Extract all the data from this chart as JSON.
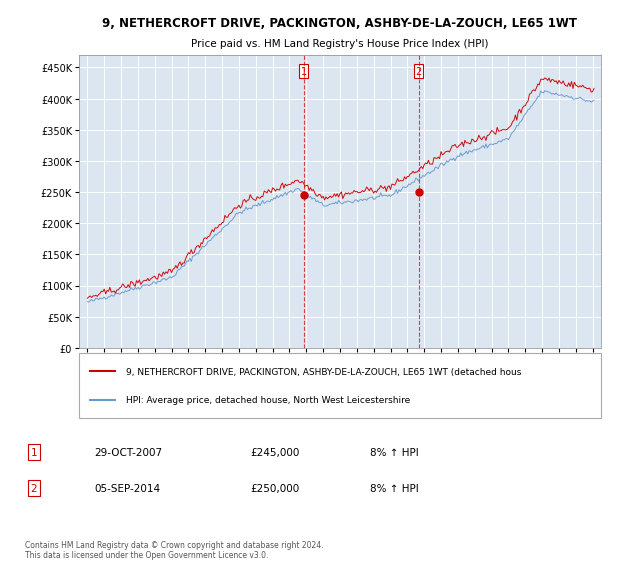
{
  "title1": "9, NETHERCROFT DRIVE, PACKINGTON, ASHBY-DE-LA-ZOUCH, LE65 1WT",
  "title2": "Price paid vs. HM Land Registry's House Price Index (HPI)",
  "red_label": "9, NETHERCROFT DRIVE, PACKINGTON, ASHBY-DE-LA-ZOUCH, LE65 1WT (detached hous",
  "blue_label": "HPI: Average price, detached house, North West Leicestershire",
  "sale1_date": "29-OCT-2007",
  "sale1_price": 245000,
  "sale1_hpi": "8% ↑ HPI",
  "sale1_x": 2007.83,
  "sale2_date": "05-SEP-2014",
  "sale2_price": 250000,
  "sale2_hpi": "8% ↑ HPI",
  "sale2_x": 2014.67,
  "ylim_min": 0,
  "ylim_max": 470000,
  "xlim_min": 1994.5,
  "xlim_max": 2025.5,
  "background_color": "#dce6f1",
  "red_color": "#cc0000",
  "blue_color": "#6699cc",
  "grid_color": "#ffffff",
  "footer": "Contains HM Land Registry data © Crown copyright and database right 2024.\nThis data is licensed under the Open Government Licence v3.0."
}
